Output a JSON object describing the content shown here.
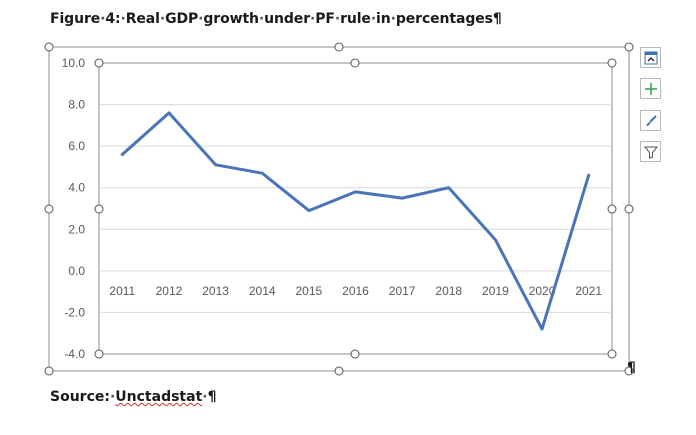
{
  "document": {
    "figure_title_parts": [
      "Figure",
      "4:",
      "Real",
      "GDP",
      "growth",
      "under",
      "PF",
      "rule",
      "in",
      "percentages"
    ],
    "paragraph_mark": "¶",
    "source_label": "Source:",
    "source_name": "Unctadstat",
    "trailing_mark": "¶"
  },
  "toolbar": {
    "buttons": [
      {
        "icon": "chart-elements-layout-icon"
      },
      {
        "icon": "plus-icon"
      },
      {
        "icon": "brush-icon"
      },
      {
        "icon": "filter-icon"
      }
    ]
  },
  "colors": {
    "series": "#4a74b8",
    "gridline": "#d9d9d9",
    "frame": "#8c8c8c",
    "tick_text": "#595959"
  },
  "chart_data": {
    "type": "line",
    "title": "",
    "xlabel": "",
    "ylabel": "",
    "categories": [
      "2011",
      "2012",
      "2013",
      "2014",
      "2015",
      "2016",
      "2017",
      "2018",
      "2019",
      "2020",
      "2021"
    ],
    "series": [
      {
        "values": [
          5.6,
          7.6,
          5.1,
          4.7,
          2.9,
          3.8,
          3.5,
          4.0,
          1.5,
          -2.8,
          4.6
        ]
      }
    ],
    "ylim": [
      -4.0,
      10.0
    ],
    "yticks": [
      "10.0",
      "8.0",
      "6.0",
      "4.0",
      "2.0",
      "0.0",
      "-2.0",
      "-4.0"
    ],
    "grid": true,
    "legend": "none"
  }
}
